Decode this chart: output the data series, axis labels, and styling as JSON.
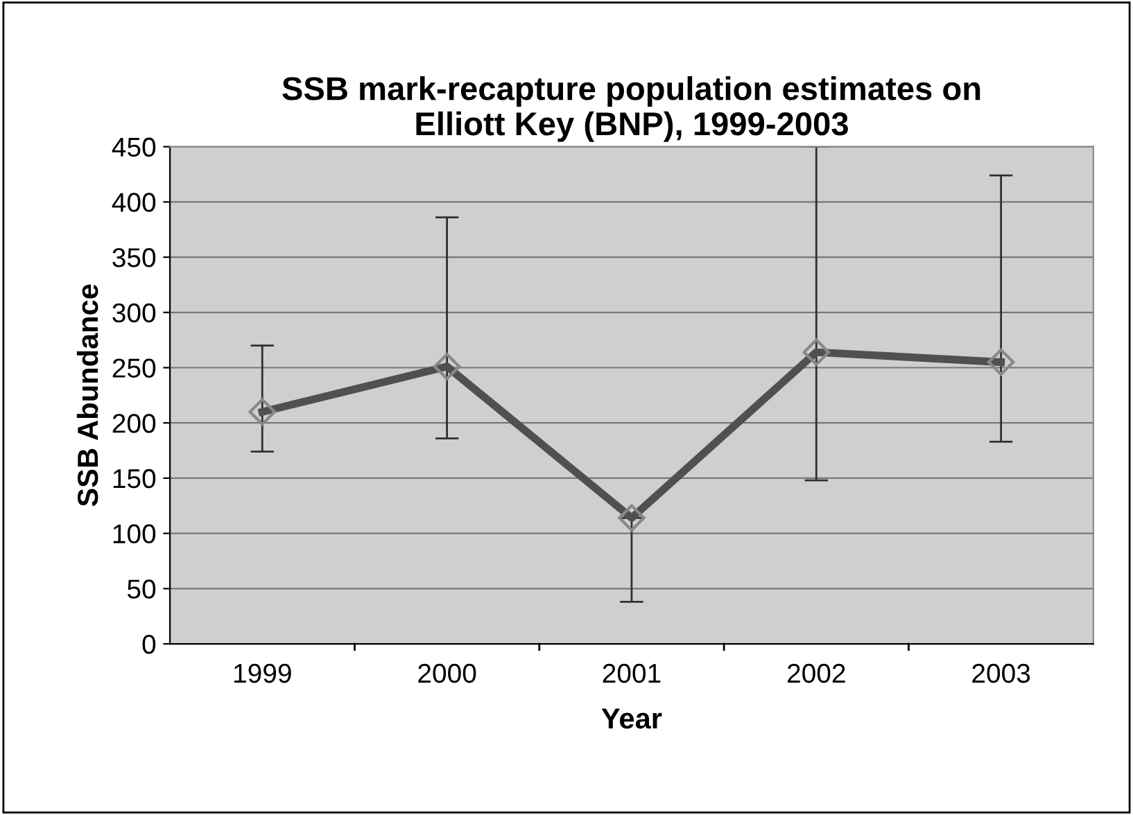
{
  "chart_data": {
    "type": "line",
    "title": "SSB mark-recapture population estimates on\nElliott Key (BNP), 1999-2003",
    "xlabel": "Year",
    "ylabel": "SSB Abundance",
    "categories": [
      "1999",
      "2000",
      "2001",
      "2002",
      "2003"
    ],
    "series": [
      {
        "color": "#505050",
        "values": [
          210,
          251,
          114,
          264,
          255
        ],
        "errors": [
          [
            174,
            270
          ],
          [
            186,
            386
          ],
          [
            38,
            114
          ],
          [
            148,
            450
          ],
          [
            183,
            424
          ]
        ]
      }
    ],
    "ylim": [
      0,
      450
    ],
    "yticks": [
      0,
      50,
      100,
      150,
      200,
      250,
      300,
      350,
      400,
      450
    ],
    "grid": "y",
    "marker": "diamond",
    "line_style": "solid",
    "legend": false
  }
}
